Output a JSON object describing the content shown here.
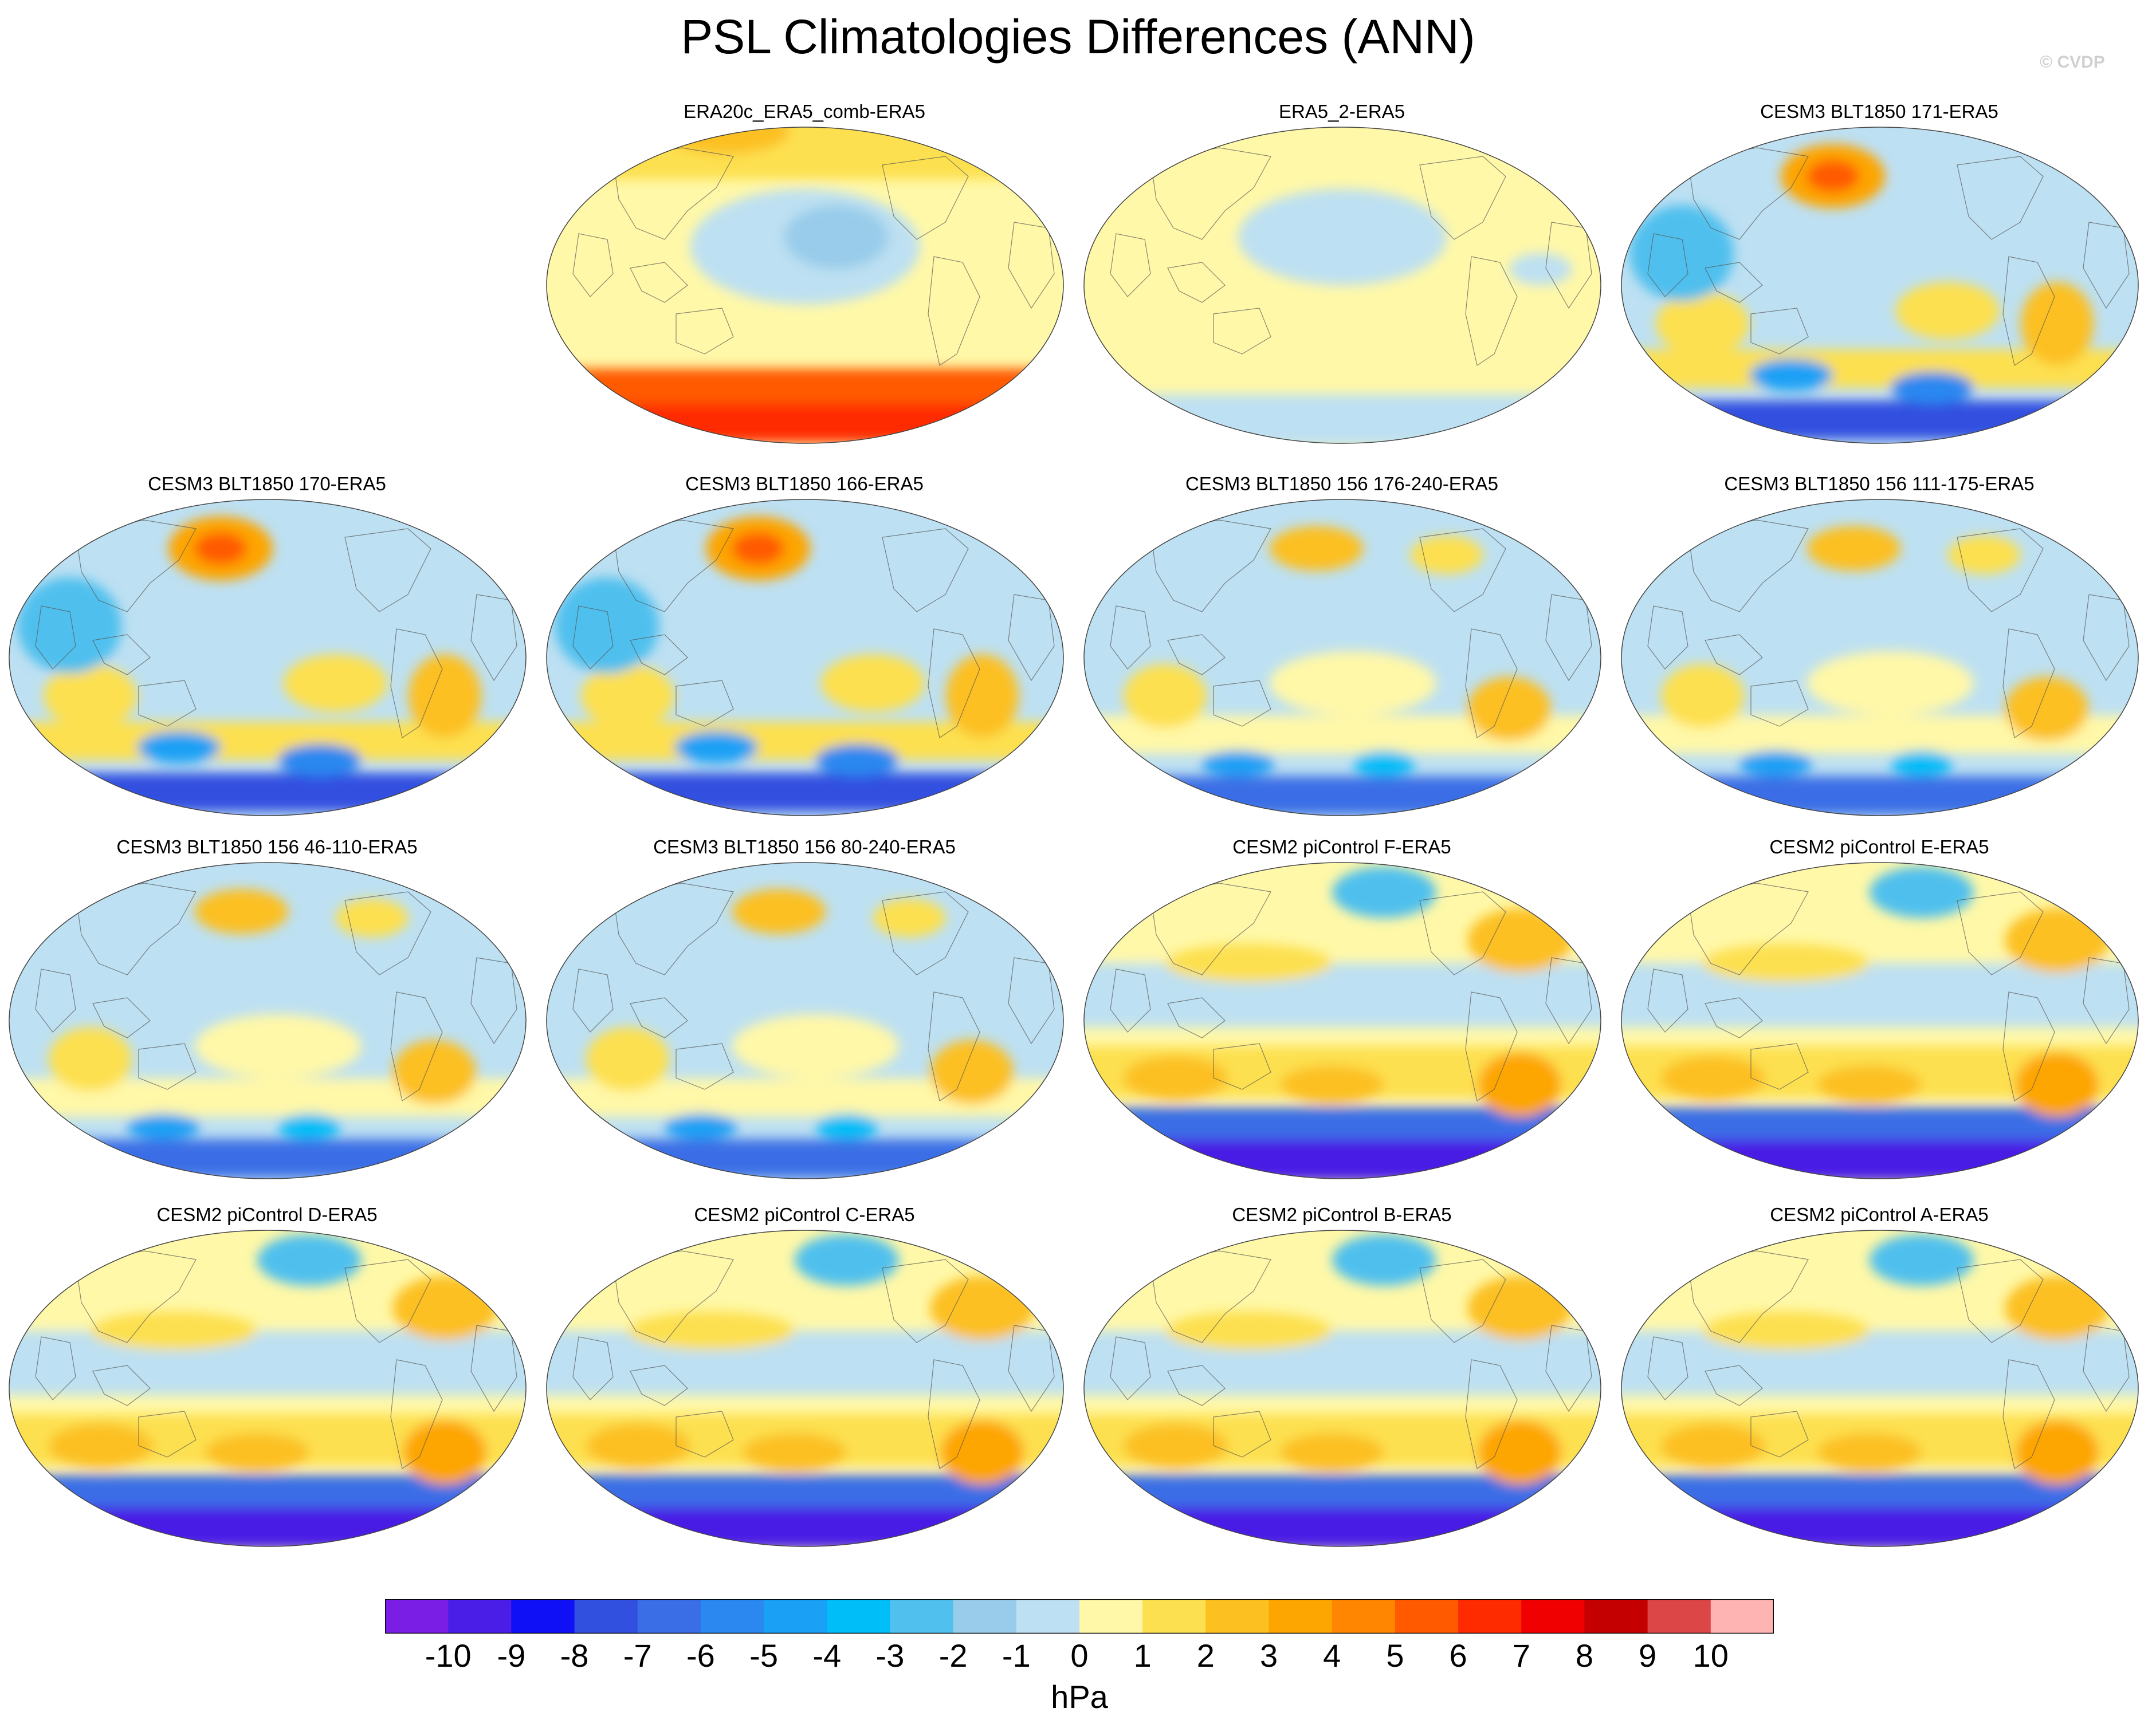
{
  "title": "PSL Climatologies Differences (ANN)",
  "watermark": "© CVDP",
  "map_data": {
    "projection": "Robinson",
    "central_longitude": 180,
    "variable": "PSL",
    "season": "ANN",
    "panels": [
      {
        "title": "ERA20c_ERA5_comb-ERA5",
        "pattern": "era20c"
      },
      {
        "title": "ERA5_2-ERA5",
        "pattern": "near-zero"
      },
      {
        "title": "CESM3 BLT1850 171-ERA5",
        "pattern": "cesm3"
      },
      {
        "title": "CESM3 BLT1850 170-ERA5",
        "pattern": "cesm3"
      },
      {
        "title": "CESM3 BLT1850 166-ERA5",
        "pattern": "cesm3"
      },
      {
        "title": "CESM3 BLT1850 156 176-240-ERA5",
        "pattern": "cesm3-weak"
      },
      {
        "title": "CESM3 BLT1850 156 111-175-ERA5",
        "pattern": "cesm3-weak"
      },
      {
        "title": "CESM3 BLT1850 156 46-110-ERA5",
        "pattern": "cesm3-weak"
      },
      {
        "title": "CESM3 BLT1850 156 80-240-ERA5",
        "pattern": "cesm3-weak"
      },
      {
        "title": "CESM2 piControl F-ERA5",
        "pattern": "cesm2"
      },
      {
        "title": "CESM2 piControl E-ERA5",
        "pattern": "cesm2"
      },
      {
        "title": "CESM2 piControl D-ERA5",
        "pattern": "cesm2"
      },
      {
        "title": "CESM2 piControl C-ERA5",
        "pattern": "cesm2"
      },
      {
        "title": "CESM2 piControl B-ERA5",
        "pattern": "cesm2"
      },
      {
        "title": "CESM2 piControl A-ERA5",
        "pattern": "cesm2"
      }
    ]
  },
  "colorbar": {
    "labels": [
      "-10",
      "-9",
      "-8",
      "-7",
      "-6",
      "-5",
      "-4",
      "-3",
      "-2",
      "-1",
      "0",
      "1",
      "2",
      "3",
      "4",
      "5",
      "6",
      "7",
      "8",
      "9",
      "10"
    ],
    "colors": [
      "#7a1ee6",
      "#4a1ee6",
      "#0f10f5",
      "#3250e0",
      "#3a6ee6",
      "#2a88f0",
      "#1aa0f5",
      "#00bef8",
      "#50c0ee",
      "#98ccea",
      "#bde0f2",
      "#fff8a8",
      "#fde050",
      "#fcc020",
      "#fda500",
      "#fe8600",
      "#ff5a00",
      "#fe2a00",
      "#f00000",
      "#c40000",
      "#dc4646",
      "#ffb4b4"
    ],
    "units": "hPa"
  }
}
